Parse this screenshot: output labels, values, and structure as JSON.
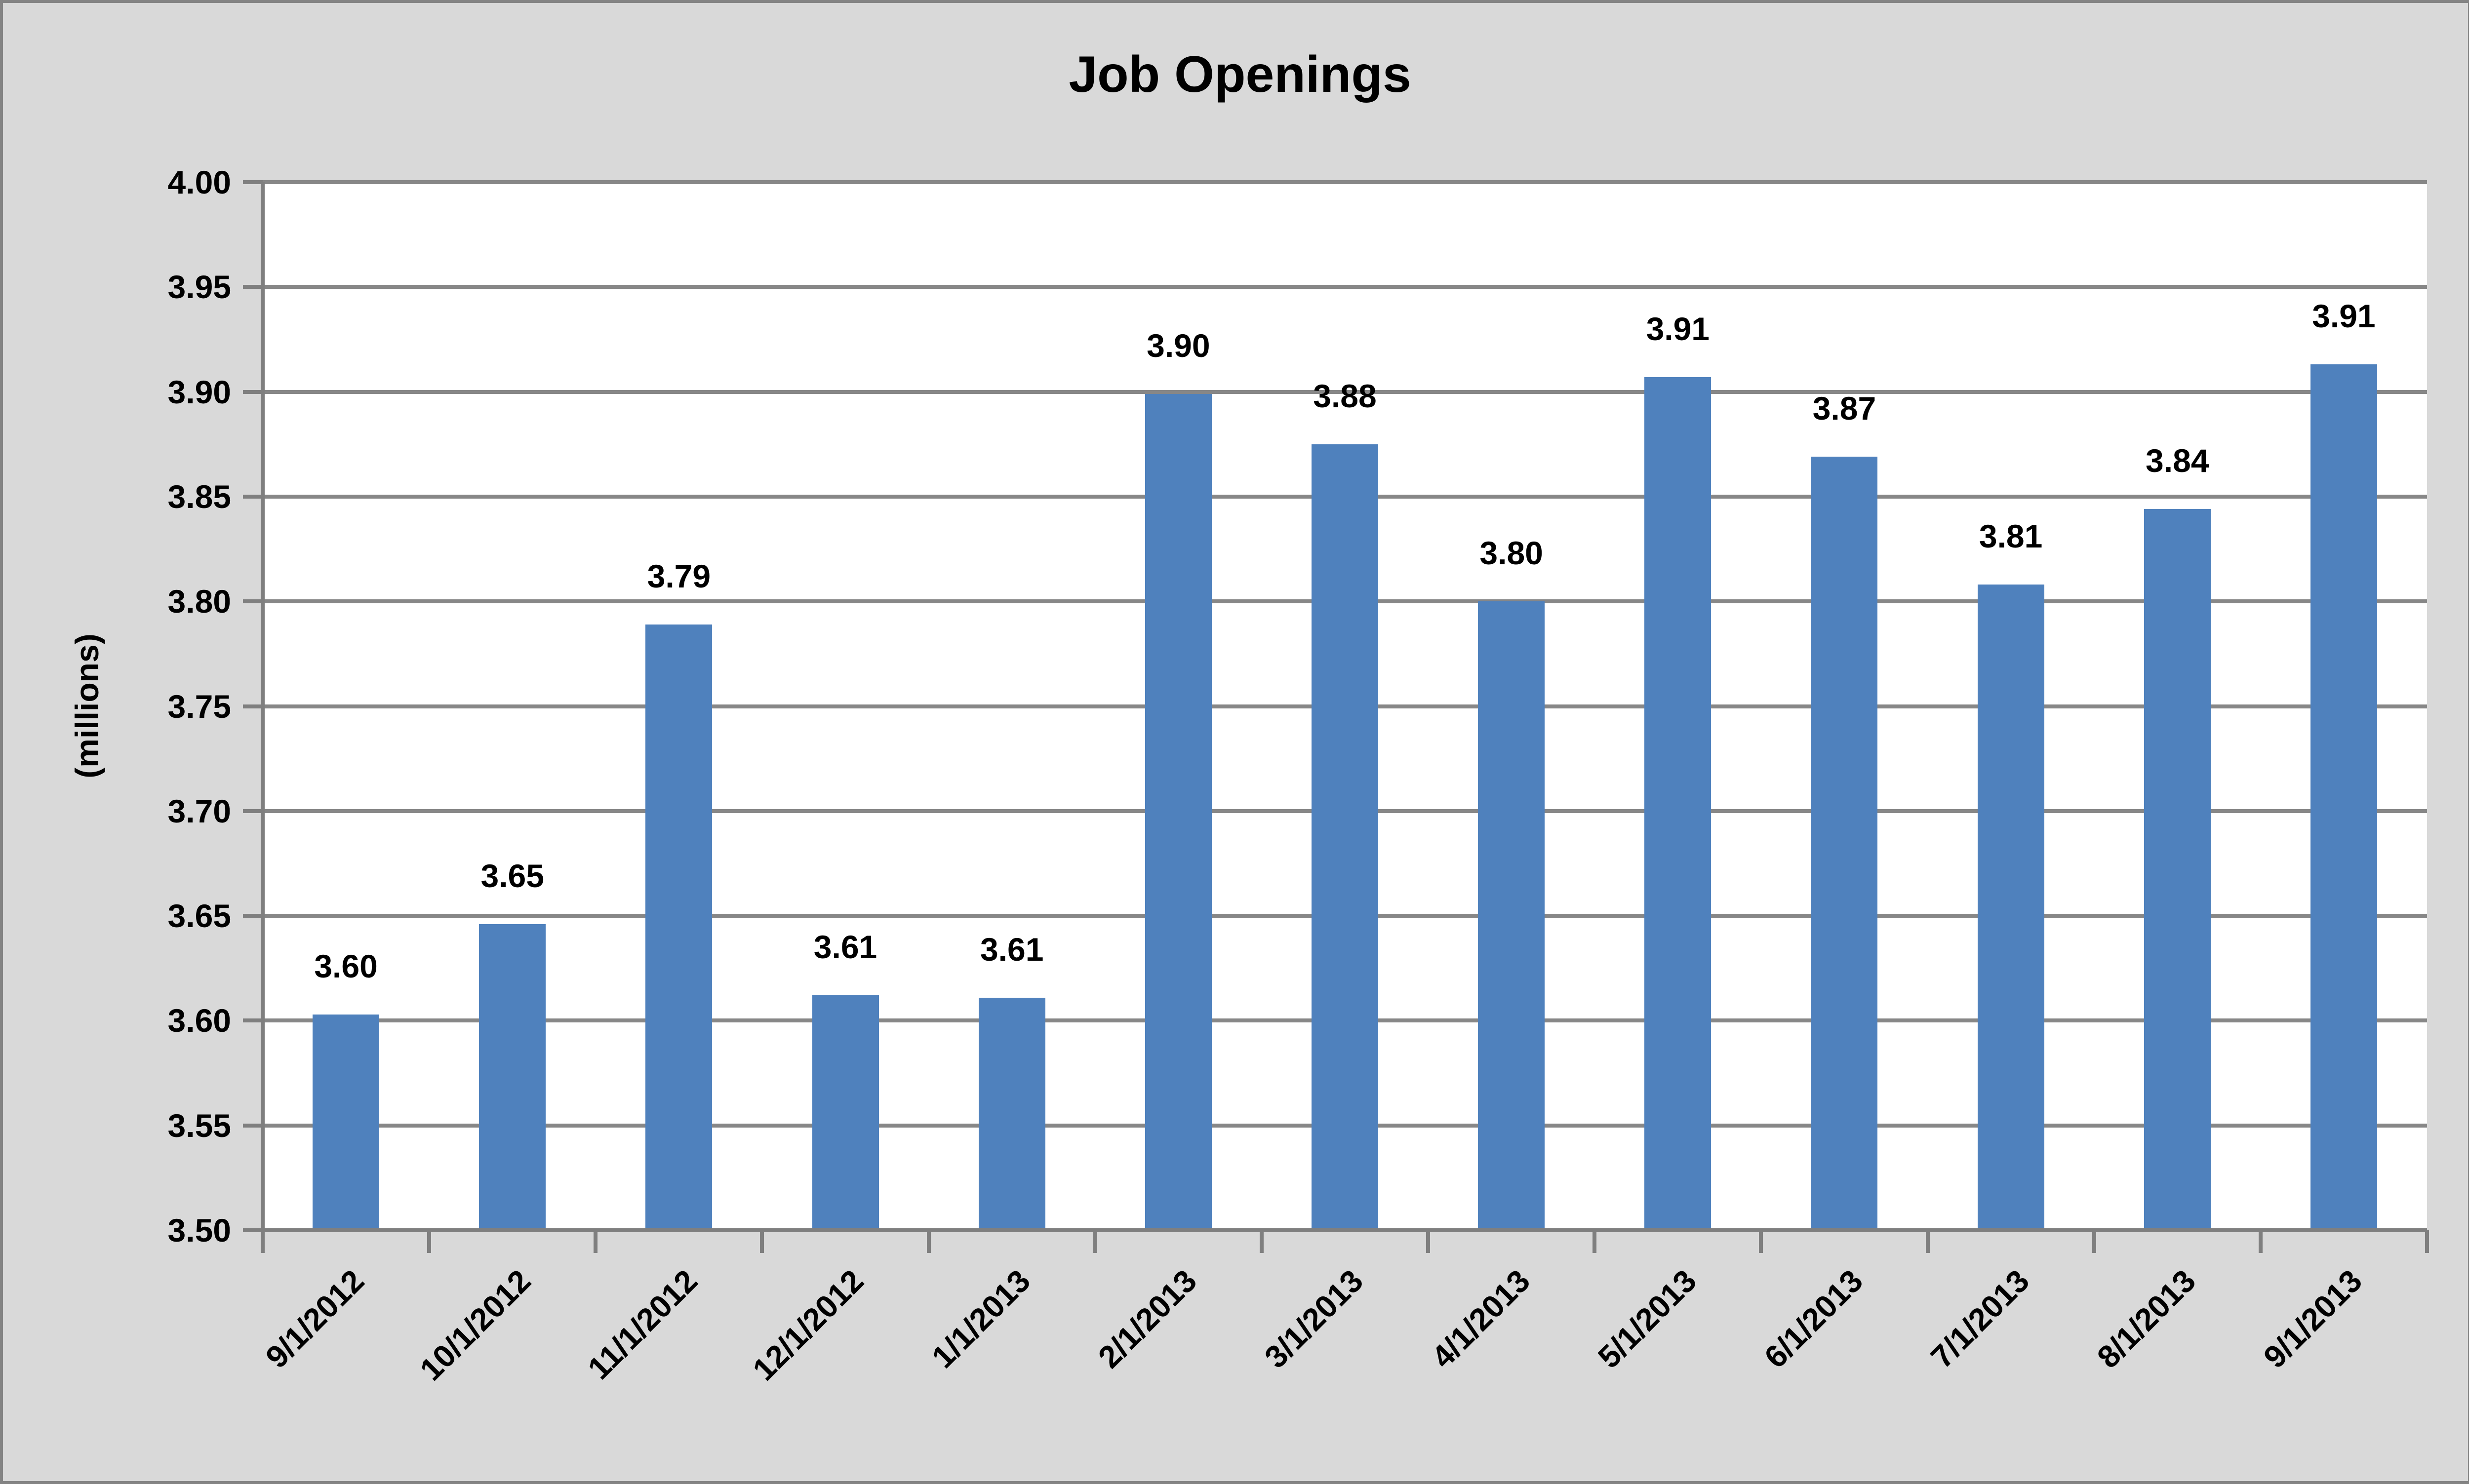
{
  "chart_data": {
    "type": "bar",
    "title": "Job Openings",
    "ylabel": "(millions)",
    "xlabel": "",
    "categories": [
      "9/1/2012",
      "10/1/2012",
      "11/1/2012",
      "12/1/2012",
      "1/1/2013",
      "2/1/2013",
      "3/1/2013",
      "4/1/2013",
      "5/1/2013",
      "6/1/2013",
      "7/1/2013",
      "8/1/2013",
      "9/1/2013"
    ],
    "values": [
      3.603,
      3.646,
      3.789,
      3.612,
      3.611,
      3.899,
      3.875,
      3.8,
      3.907,
      3.869,
      3.808,
      3.844,
      3.913
    ],
    "bar_labels": [
      "3.60",
      "3.65",
      "3.79",
      "3.61",
      "3.61",
      "3.90",
      "3.88",
      "3.80",
      "3.91",
      "3.87",
      "3.81",
      "3.84",
      "3.91"
    ],
    "ylim": [
      3.5,
      4.0
    ],
    "ytick_step": 0.05,
    "ytick_labels": [
      "4.00",
      "3.95",
      "3.90",
      "3.85",
      "3.80",
      "3.75",
      "3.70",
      "3.65",
      "3.60",
      "3.55",
      "3.50"
    ],
    "grid": true,
    "legend": "none",
    "colors": {
      "bar": "#4F81BD",
      "gridline": "#878787",
      "axis": "#7F7F7F",
      "plot_background": "#FFFFFF",
      "chart_background": "#D9D9D9",
      "chart_border": "#848484",
      "text": "#000000"
    }
  }
}
